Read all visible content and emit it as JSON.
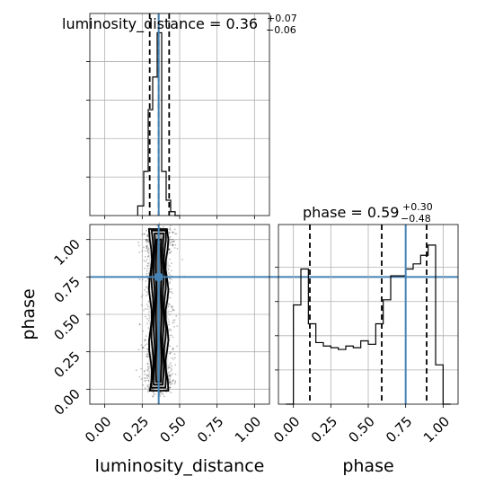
{
  "chart_data": [
    {
      "type": "histogram",
      "panel": "luminosity_distance-marginal",
      "title": {
        "main": "luminosity_distance = 0.36",
        "upper": "+0.07",
        "lower": "−0.06"
      },
      "xlim": [
        -0.1,
        1.1
      ],
      "bin_edges": [
        0.22,
        0.26,
        0.29,
        0.32,
        0.35,
        0.38,
        0.41,
        0.44,
        0.47,
        0.5
      ],
      "counts": [
        0.05,
        0.23,
        0.55,
        0.72,
        0.95,
        0.23,
        0.08,
        0.02,
        0.0
      ],
      "ylim": [
        0,
        1
      ],
      "quantile_lines": [
        0.3,
        0.36,
        0.43
      ],
      "truth": 0.36,
      "grid": true
    },
    {
      "type": "histogram",
      "panel": "phase-marginal",
      "title": {
        "main": "phase = 0.59",
        "upper": "+0.30",
        "lower": "−0.48"
      },
      "xlim": [
        -0.1,
        1.1
      ],
      "bin_edges": [
        -0.05,
        0.0,
        0.05,
        0.1,
        0.15,
        0.2,
        0.25,
        0.3,
        0.35,
        0.4,
        0.45,
        0.5,
        0.55,
        0.6,
        0.65,
        0.7,
        0.75,
        0.8,
        0.85,
        0.9,
        0.95,
        1.0,
        1.05
      ],
      "counts": [
        0.0,
        0.58,
        0.79,
        0.47,
        0.36,
        0.34,
        0.33,
        0.32,
        0.34,
        0.33,
        0.37,
        0.35,
        0.47,
        0.61,
        0.75,
        0.75,
        0.79,
        0.82,
        0.87,
        0.93,
        0.23,
        0.0
      ],
      "ylim": [
        0,
        1.05
      ],
      "quantile_lines": [
        0.11,
        0.59,
        0.89
      ],
      "truth": 0.75,
      "grid": true,
      "xlabel": "phase",
      "xticks": [
        "0.00",
        "0.25",
        "0.50",
        "0.75",
        "1.00"
      ]
    },
    {
      "type": "scatter",
      "panel": "2d-joint",
      "xlabel": "luminosity_distance",
      "ylabel": "phase",
      "xlim": [
        -0.1,
        1.1
      ],
      "ylim": [
        -0.1,
        1.1
      ],
      "xticks": [
        "0.00",
        "0.25",
        "0.50",
        "0.75",
        "1.00"
      ],
      "yticks": [
        "0.00",
        "0.25",
        "0.50",
        "0.75",
        "1.00"
      ],
      "truth": {
        "x": 0.36,
        "y": 0.75
      },
      "samples": {
        "x_center": 0.36,
        "x_width": 0.045,
        "y_range": [
          0.0,
          1.05
        ],
        "count": 1800
      },
      "contour_levels": [
        {
          "half_width": 0.065,
          "y_range": [
            -0.01,
            1.07
          ]
        },
        {
          "half_width": 0.05,
          "y_range": [
            0.01,
            1.06
          ]
        },
        {
          "half_width": 0.035,
          "y_range": [
            0.03,
            1.04
          ]
        },
        {
          "half_width": 0.02,
          "y_range": [
            0.05,
            1.0
          ]
        }
      ],
      "grid": true
    }
  ],
  "colors": {
    "truth": "#4682b4",
    "hist": "#000000",
    "grid": "#b0b0b0",
    "contour": "#000000",
    "point": "#000000"
  }
}
